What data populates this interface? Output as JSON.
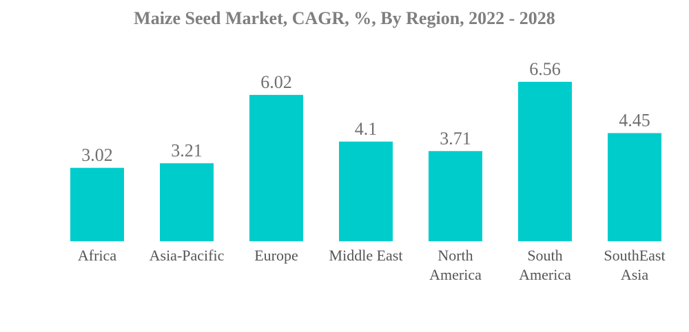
{
  "chart_data": {
    "type": "bar",
    "title": "Maize Seed Market, CAGR, %, By Region, 2022 - 2028",
    "xlabel": "",
    "ylabel": "",
    "categories": [
      "Africa",
      "Asia-Pacific",
      "Europe",
      "Middle East",
      "North America",
      "South America",
      "SouthEast Asia"
    ],
    "category_lines": [
      [
        "Africa"
      ],
      [
        "Asia-Pacific"
      ],
      [
        "Europe"
      ],
      [
        "Middle East"
      ],
      [
        "North",
        "America"
      ],
      [
        "South",
        "America"
      ],
      [
        "SouthEast",
        "Asia"
      ]
    ],
    "values": [
      3.02,
      3.21,
      6.02,
      4.1,
      3.71,
      6.56,
      4.45
    ],
    "value_labels": [
      "3.02",
      "3.21",
      "6.02",
      "4.1",
      "3.71",
      "6.56",
      "4.45"
    ],
    "ylim": [
      0,
      6.56
    ],
    "grid": false,
    "legend": "none",
    "bar_color": "#00cccc"
  }
}
